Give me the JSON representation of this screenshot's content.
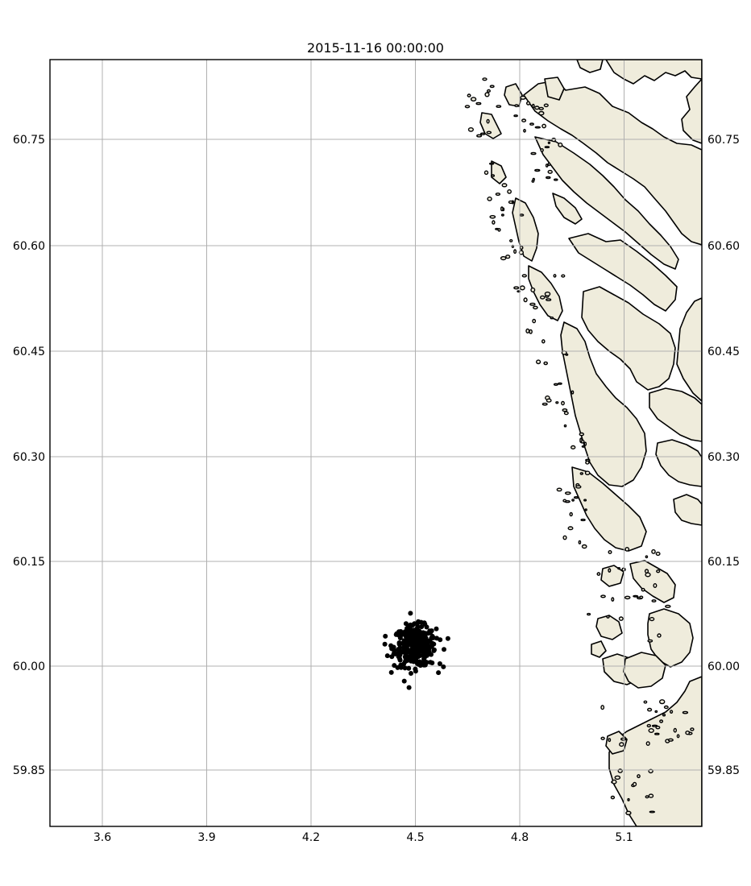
{
  "title": "2015-11-16 00:00:00",
  "colors": {
    "land": "#efecdc",
    "ocean": "#ffffff",
    "coastline": "#000000",
    "grid": "#b0b0b0",
    "particles": "#000000"
  },
  "map": {
    "projection": "plate-carree",
    "grid": true,
    "lon_range": [
      3.45,
      5.325
    ],
    "lat_range": [
      59.735,
      60.865
    ],
    "lon_ticks": [
      "3.6",
      "3.9",
      "4.2",
      "4.5",
      "4.8",
      "5.1"
    ],
    "lat_ticks": [
      "60.75",
      "60.60",
      "60.45",
      "60.30",
      "60.15",
      "60.00",
      "59.85"
    ],
    "features": [
      "Norwegian west coast coastline with fjords and skerries"
    ]
  },
  "chart_data": {
    "type": "scatter",
    "title": "2015-11-16 00:00:00",
    "xlabel": "",
    "ylabel": "",
    "xlim": [
      3.45,
      5.325
    ],
    "ylim": [
      59.735,
      60.865
    ],
    "grid": true,
    "series": [
      {
        "marker": "circle",
        "color": "#000000",
        "center": [
          4.5,
          60.0
        ],
        "spread": [
          0.06,
          0.03
        ],
        "count": 350
      }
    ]
  }
}
